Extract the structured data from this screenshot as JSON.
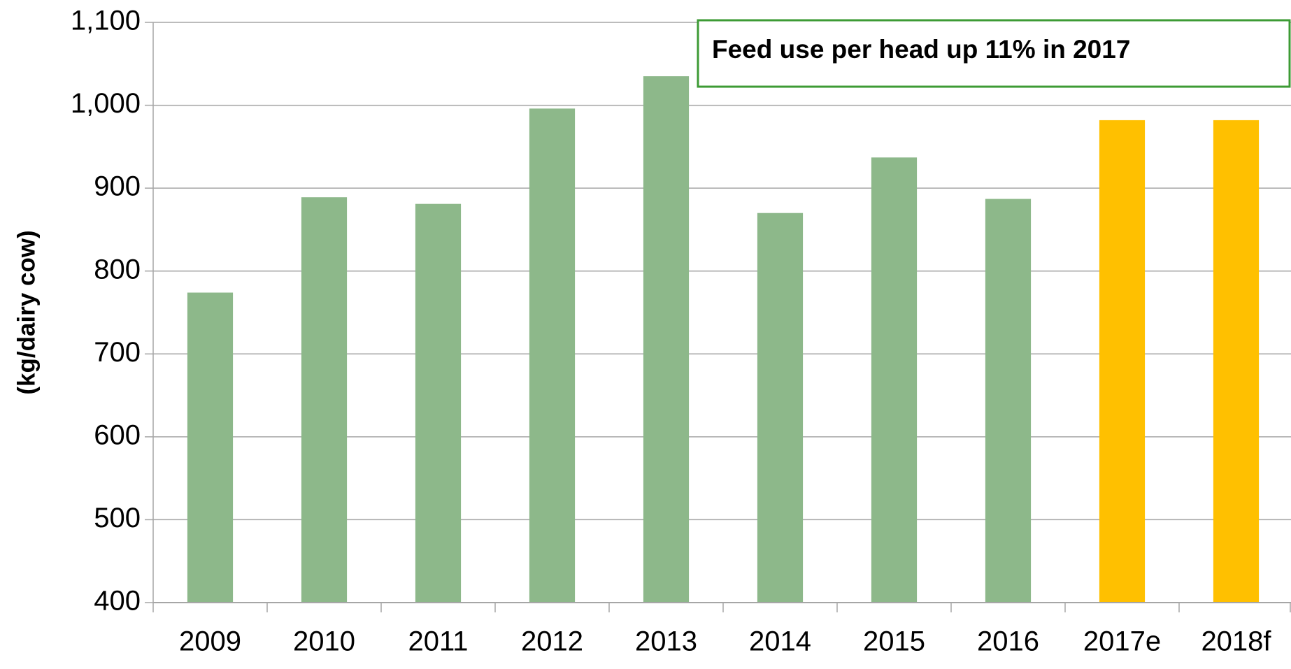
{
  "chart_data": {
    "type": "bar",
    "y_axis_label": "(kg/dairy cow)",
    "annotation": "Feed use per head up 11% in 2017",
    "categories": [
      "2009",
      "2010",
      "2011",
      "2012",
      "2013",
      "2014",
      "2015",
      "2016",
      "2017e",
      "2018f"
    ],
    "values": [
      774,
      889,
      881,
      996,
      1035,
      870,
      937,
      887,
      982,
      982
    ],
    "colors": [
      "#8db88a",
      "#8db88a",
      "#8db88a",
      "#8db88a",
      "#8db88a",
      "#8db88a",
      "#8db88a",
      "#8db88a",
      "#ffc000",
      "#ffc000"
    ],
    "ylim": [
      400,
      1100
    ],
    "yticks": [
      400,
      500,
      600,
      700,
      800,
      900,
      {
        "value": 1000,
        "label": "1,000"
      },
      {
        "value": 1100,
        "label": "1,100"
      }
    ],
    "grid": true
  }
}
